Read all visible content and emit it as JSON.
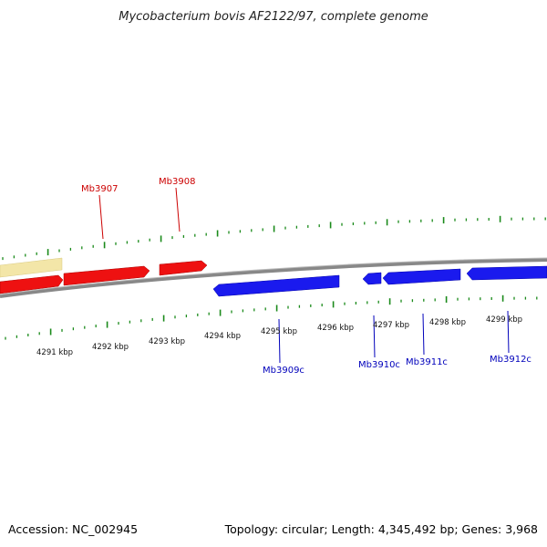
{
  "title": "Mycobacterium bovis AF2122/97, complete genome",
  "footer": {
    "accession": "Accession: NC_002945",
    "summary": "Topology: circular; Length: 4,345,492 bp; Genes: 3,968"
  },
  "colors": {
    "forward_gene": "#ee1111",
    "reverse_gene": "#1a1aee",
    "forward_label": "#cc0000",
    "reverse_label": "#0000bb",
    "pale_feature": "#f3e6a8",
    "backbone": "#888888",
    "tick": "#1a8a1a"
  },
  "scale_labels": [
    "4291 kbp",
    "4292 kbp",
    "4293 kbp",
    "4294 kbp",
    "4295 kbp",
    "4296 kbp",
    "4297 kbp",
    "4298 kbp",
    "4299 kbp"
  ],
  "forward_labels": [
    "Mb3907",
    "Mb3908"
  ],
  "reverse_labels": [
    "Mb3909c",
    "Mb3910c",
    "Mb3911c",
    "Mb3912c"
  ]
}
